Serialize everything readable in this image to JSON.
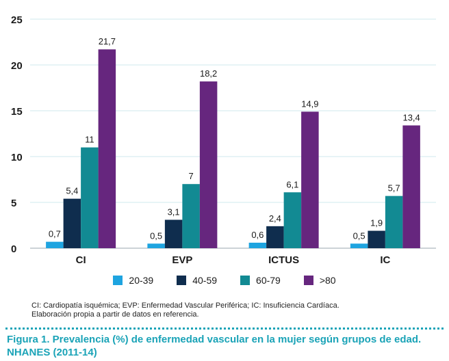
{
  "chart_data": {
    "type": "bar",
    "categories": [
      "CI",
      "EVP",
      "ICTUS",
      "IC"
    ],
    "series": [
      {
        "name": "20-39",
        "values": [
          0.7,
          0.5,
          0.6,
          0.5
        ],
        "labels": [
          "0,7",
          "0,5",
          "0,6",
          "0,5"
        ],
        "color": "#1ea4e0"
      },
      {
        "name": "40-59",
        "values": [
          5.4,
          3.1,
          2.4,
          1.9
        ],
        "labels": [
          "5,4",
          "3,1",
          "2,4",
          "1,9"
        ],
        "color": "#0f2d4e"
      },
      {
        "name": "60-79",
        "values": [
          11,
          7,
          6.1,
          5.7
        ],
        "labels": [
          "11",
          "7",
          "6,1",
          "5,7"
        ],
        "color": "#128a93"
      },
      {
        "name": ">80",
        "values": [
          21.7,
          18.2,
          14.9,
          13.4
        ],
        "labels": [
          "21,7",
          "18,2",
          "14,9",
          "13,4"
        ],
        "color": "#66267e"
      }
    ],
    "yticks": [
      0,
      5,
      10,
      15,
      20,
      25
    ],
    "ylim": [
      0,
      25
    ],
    "grid": true,
    "legend": "bottom"
  },
  "notes": {
    "line1": "CI: Cardiopatía isquémica; EVP: Enfermedad Vascular Periférica; IC: Insuficiencia Cardíaca.",
    "line2": "Elaboración propia a partir de datos en referencia."
  },
  "caption": "Figura 1. Prevalencia (%) de enfermedad vascular en la mujer según grupos de edad. NHANES (2011-14)",
  "colors": {
    "accent": "#1aa3b7",
    "grid": "#cfe9ec"
  }
}
